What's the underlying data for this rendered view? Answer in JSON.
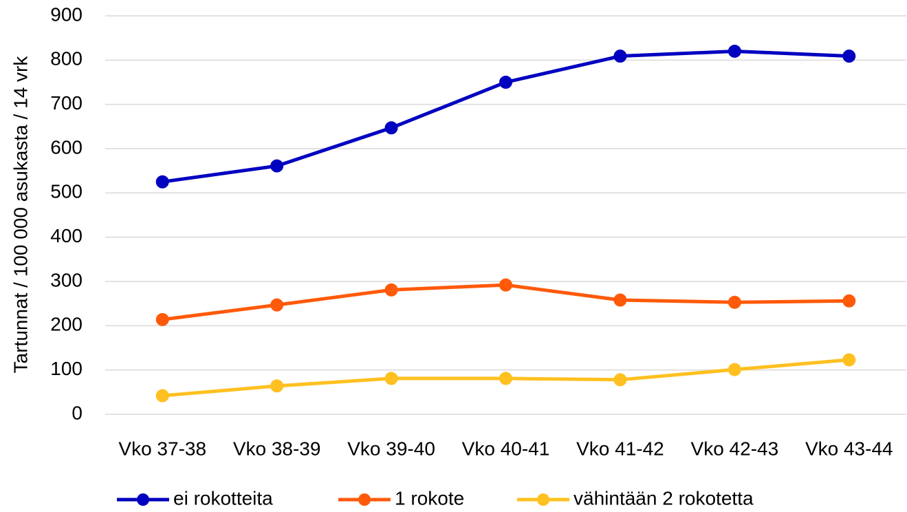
{
  "chart_data": {
    "type": "line",
    "y_label": "Tartunnat / 100 000 asukasta / 14 vrk",
    "categories": [
      "Vko 37-38",
      "Vko 38-39",
      "Vko 39-40",
      "Vko 40-41",
      "Vko 41-42",
      "Vko 42-43",
      "Vko 43-44"
    ],
    "series": [
      {
        "name": "ei rokotteita",
        "color": "#0000c0",
        "values": [
          525,
          561,
          647,
          750,
          809,
          820,
          809
        ]
      },
      {
        "name": "1 rokote",
        "color": "#ff5a0a",
        "values": [
          214,
          247,
          281,
          292,
          258,
          253,
          256
        ]
      },
      {
        "name": "vähintään 2 rokotetta",
        "color": "#ffc020",
        "values": [
          42,
          64,
          81,
          81,
          78,
          101,
          123
        ]
      }
    ],
    "ylim": [
      0,
      900
    ],
    "yticks": [
      0,
      100,
      200,
      300,
      400,
      500,
      600,
      700,
      800,
      900
    ],
    "grid": true,
    "legend": "bottom"
  }
}
